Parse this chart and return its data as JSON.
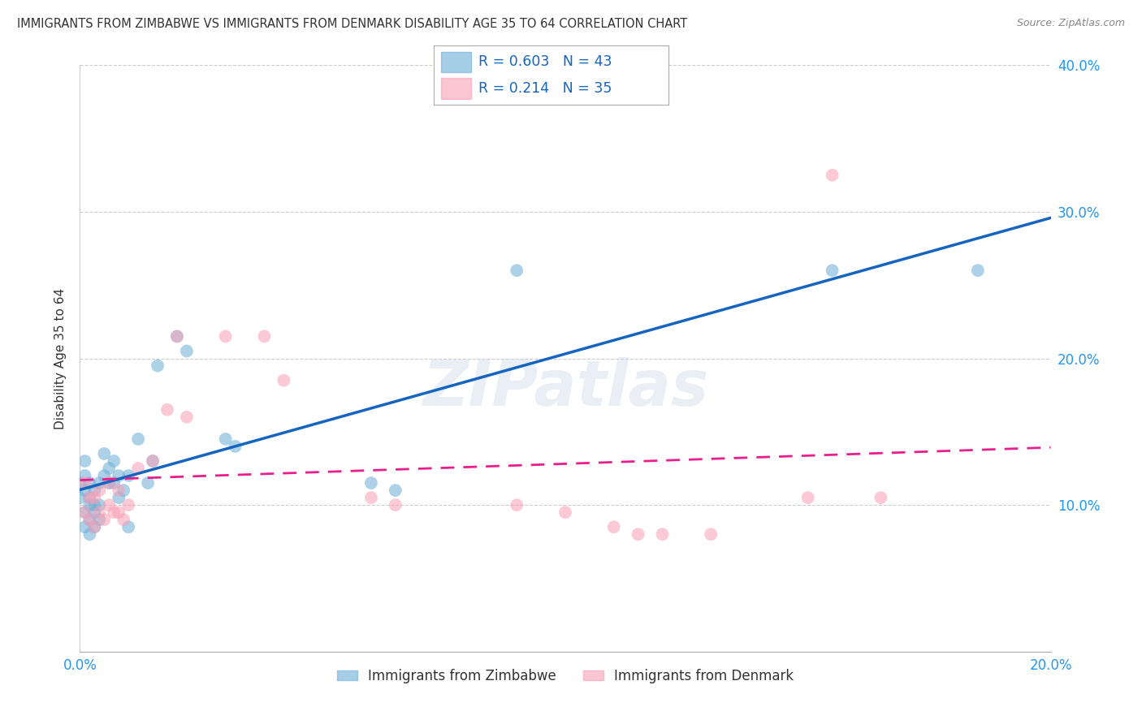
{
  "title": "IMMIGRANTS FROM ZIMBABWE VS IMMIGRANTS FROM DENMARK DISABILITY AGE 35 TO 64 CORRELATION CHART",
  "source": "Source: ZipAtlas.com",
  "ylabel_label": "Disability Age 35 to 64",
  "x_min": 0.0,
  "x_max": 0.2,
  "y_min": 0.0,
  "y_max": 0.4,
  "x_ticks": [
    0.0,
    0.05,
    0.1,
    0.15,
    0.2
  ],
  "x_tick_labels": [
    "0.0%",
    "",
    "",
    "",
    "20.0%"
  ],
  "y_ticks": [
    0.0,
    0.1,
    0.2,
    0.3,
    0.4
  ],
  "y_tick_labels": [
    "",
    "10.0%",
    "20.0%",
    "30.0%",
    "40.0%"
  ],
  "zimbabwe_color": "#6baed6",
  "denmark_color": "#fa9fb5",
  "zimbabwe_line_color": "#1565C0",
  "denmark_line_color": "#e91e8c",
  "zimbabwe_R": 0.603,
  "zimbabwe_N": 43,
  "denmark_R": 0.214,
  "denmark_N": 35,
  "legend_label_zimbabwe": "Immigrants from Zimbabwe",
  "legend_label_denmark": "Immigrants from Denmark",
  "watermark": "ZIPatlas",
  "zim_x": [
    0.0,
    0.0,
    0.001,
    0.001,
    0.001,
    0.001,
    0.001,
    0.002,
    0.002,
    0.002,
    0.002,
    0.002,
    0.003,
    0.003,
    0.003,
    0.003,
    0.004,
    0.004,
    0.004,
    0.005,
    0.005,
    0.006,
    0.006,
    0.007,
    0.007,
    0.008,
    0.008,
    0.009,
    0.01,
    0.01,
    0.012,
    0.014,
    0.015,
    0.016,
    0.02,
    0.022,
    0.03,
    0.032,
    0.06,
    0.065,
    0.09,
    0.155,
    0.185
  ],
  "zim_y": [
    0.105,
    0.115,
    0.085,
    0.095,
    0.11,
    0.12,
    0.13,
    0.08,
    0.09,
    0.1,
    0.105,
    0.115,
    0.085,
    0.095,
    0.1,
    0.11,
    0.09,
    0.1,
    0.115,
    0.12,
    0.135,
    0.115,
    0.125,
    0.115,
    0.13,
    0.105,
    0.12,
    0.11,
    0.085,
    0.12,
    0.145,
    0.115,
    0.13,
    0.195,
    0.215,
    0.205,
    0.145,
    0.14,
    0.115,
    0.11,
    0.26,
    0.26,
    0.26
  ],
  "den_x": [
    0.001,
    0.001,
    0.002,
    0.002,
    0.003,
    0.003,
    0.004,
    0.004,
    0.005,
    0.006,
    0.006,
    0.007,
    0.008,
    0.008,
    0.009,
    0.01,
    0.012,
    0.015,
    0.018,
    0.02,
    0.022,
    0.03,
    0.038,
    0.042,
    0.06,
    0.065,
    0.09,
    0.1,
    0.11,
    0.115,
    0.12,
    0.13,
    0.15,
    0.155,
    0.165
  ],
  "den_y": [
    0.095,
    0.115,
    0.09,
    0.105,
    0.085,
    0.105,
    0.095,
    0.11,
    0.09,
    0.1,
    0.115,
    0.095,
    0.095,
    0.11,
    0.09,
    0.1,
    0.125,
    0.13,
    0.165,
    0.215,
    0.16,
    0.215,
    0.215,
    0.185,
    0.105,
    0.1,
    0.1,
    0.095,
    0.085,
    0.08,
    0.08,
    0.08,
    0.105,
    0.325,
    0.105
  ]
}
